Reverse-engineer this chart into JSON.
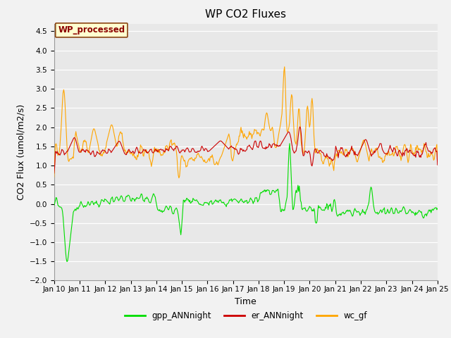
{
  "title": "WP CO2 Fluxes",
  "xlabel": "Time",
  "ylabel": "CO2 Flux (umol/m2/s)",
  "ylim": [
    -2.0,
    4.7
  ],
  "yticks": [
    -2.0,
    -1.5,
    -1.0,
    -0.5,
    0.0,
    0.5,
    1.0,
    1.5,
    2.0,
    2.5,
    3.0,
    3.5,
    4.0,
    4.5
  ],
  "x_start_day": 10,
  "x_end_day": 25,
  "xtick_days": [
    10,
    11,
    12,
    13,
    14,
    15,
    16,
    17,
    18,
    19,
    20,
    21,
    22,
    23,
    24,
    25
  ],
  "xtick_labels": [
    "Jan 10",
    "Jan 11",
    "Jan 12",
    "Jan 13",
    "Jan 14",
    "Jan 15",
    "Jan 16",
    "Jan 17",
    "Jan 18",
    "Jan 19",
    "Jan 20",
    "Jan 21",
    "Jan 22",
    "Jan 23",
    "Jan 24",
    "Jan 25"
  ],
  "n_points": 600,
  "annotation_text": "WP_processed",
  "annotation_color": "#8B0000",
  "annotation_bg": "#FFFFD0",
  "annotation_border": "#8B4513",
  "color_gpp": "#00DD00",
  "color_er": "#CC0000",
  "color_wc": "#FFA500",
  "legend_labels": [
    "gpp_ANNnight",
    "er_ANNnight",
    "wc_gf"
  ],
  "linewidth": 0.8,
  "bg_color": "#E8E8E8",
  "fig_color": "#F2F2F2",
  "title_fontsize": 11,
  "axis_fontsize": 9,
  "tick_fontsize": 7.5
}
